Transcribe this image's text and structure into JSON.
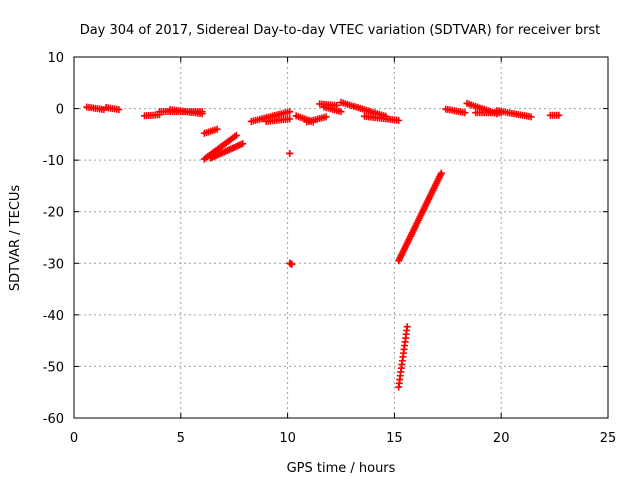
{
  "chart_data": {
    "type": "scatter",
    "title": "Day 304 of 2017, Sidereal Day-to-day VTEC variation (SDTVAR) for receiver brst",
    "xlabel": "GPS time / hours",
    "ylabel": "SDTVAR / TECUs",
    "xlim": [
      0,
      25
    ],
    "ylim": [
      -60,
      10
    ],
    "xticks": [
      0,
      5,
      10,
      15,
      20,
      25
    ],
    "yticks": [
      10,
      0,
      -10,
      -20,
      -30,
      -40,
      -50,
      -60
    ],
    "xtick_labels": [
      "0",
      "5",
      "10",
      "15",
      "20",
      "25"
    ],
    "ytick_labels": [
      "10",
      "0",
      "-10",
      "-20",
      "-30",
      "-40",
      "-50",
      "-60"
    ],
    "grid": true,
    "marker": "plus",
    "color": "#ff0000",
    "segments": [
      {
        "from": [
          0.6,
          0.3
        ],
        "to": [
          1.4,
          -0.2
        ],
        "step": 0.1
      },
      {
        "from": [
          1.5,
          0.2
        ],
        "to": [
          2.1,
          -0.2
        ],
        "step": 0.1
      },
      {
        "from": [
          3.3,
          -1.4
        ],
        "to": [
          4.0,
          -1.2
        ],
        "step": 0.1
      },
      {
        "from": [
          4.0,
          -0.6
        ],
        "to": [
          6.0,
          -0.6
        ],
        "step": 0.1
      },
      {
        "from": [
          4.5,
          -0.2
        ],
        "to": [
          6.0,
          -1.0
        ],
        "step": 0.1
      },
      {
        "from": [
          6.1,
          -4.8
        ],
        "to": [
          6.7,
          -4.0
        ],
        "step": 0.1
      },
      {
        "from": [
          6.1,
          -9.8
        ],
        "to": [
          7.6,
          -5.2
        ],
        "step": 0.08
      },
      {
        "from": [
          6.4,
          -9.6
        ],
        "to": [
          7.9,
          -6.8
        ],
        "step": 0.08
      },
      {
        "from": [
          8.3,
          -2.5
        ],
        "to": [
          10.1,
          -0.6
        ],
        "step": 0.1
      },
      {
        "from": [
          9.0,
          -2.5
        ],
        "to": [
          10.1,
          -2.0
        ],
        "step": 0.1
      },
      {
        "from": [
          10.1,
          -8.7
        ],
        "to": [
          10.1,
          -8.7
        ],
        "step": 0.1
      },
      {
        "from": [
          10.1,
          -30.0
        ],
        "to": [
          10.2,
          -30.2
        ],
        "step": 0.05
      },
      {
        "from": [
          10.4,
          -1.4
        ],
        "to": [
          11.2,
          -2.6
        ],
        "step": 0.1
      },
      {
        "from": [
          10.9,
          -2.6
        ],
        "to": [
          11.8,
          -1.6
        ],
        "step": 0.1
      },
      {
        "from": [
          11.5,
          0.9
        ],
        "to": [
          12.3,
          0.6
        ],
        "step": 0.1
      },
      {
        "from": [
          11.7,
          0.3
        ],
        "to": [
          12.5,
          -0.6
        ],
        "step": 0.1
      },
      {
        "from": [
          12.5,
          1.2
        ],
        "to": [
          14.6,
          -1.5
        ],
        "step": 0.1
      },
      {
        "from": [
          13.6,
          -1.5
        ],
        "to": [
          15.2,
          -2.3
        ],
        "step": 0.1
      },
      {
        "from": [
          15.2,
          -29.5
        ],
        "to": [
          17.2,
          -12.5
        ],
        "step": 0.04
      },
      {
        "from": [
          15.2,
          -54.0
        ],
        "to": [
          15.6,
          -42.3
        ],
        "step": 0.025
      },
      {
        "from": [
          17.4,
          -0.1
        ],
        "to": [
          18.3,
          -0.8
        ],
        "step": 0.1
      },
      {
        "from": [
          18.4,
          1.0
        ],
        "to": [
          19.8,
          -1.0
        ],
        "step": 0.1
      },
      {
        "from": [
          18.8,
          -0.8
        ],
        "to": [
          20.0,
          -0.8
        ],
        "step": 0.1
      },
      {
        "from": [
          19.8,
          -0.4
        ],
        "to": [
          21.4,
          -1.6
        ],
        "step": 0.1
      },
      {
        "from": [
          22.3,
          -1.3
        ],
        "to": [
          22.7,
          -1.3
        ],
        "step": 0.1
      }
    ]
  }
}
